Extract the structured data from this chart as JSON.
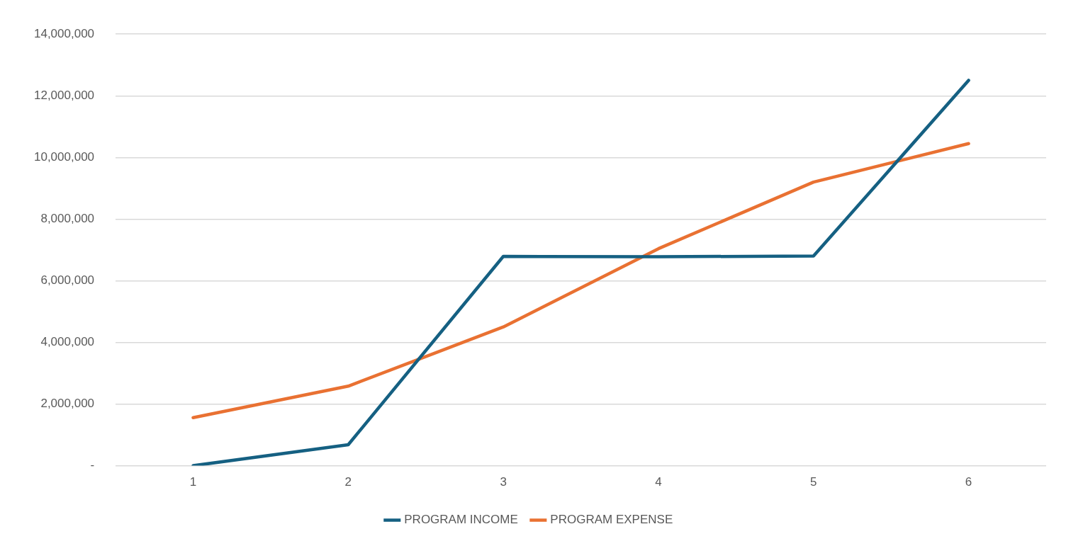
{
  "chart_data": {
    "type": "line",
    "categories": [
      "1",
      "2",
      "3",
      "4",
      "5",
      "6"
    ],
    "series": [
      {
        "name": "PROGRAM INCOME",
        "color": "#156082",
        "values": [
          0,
          680000,
          6790000,
          6780000,
          6800000,
          12500000
        ]
      },
      {
        "name": "PROGRAM EXPENSE",
        "color": "#e97132",
        "values": [
          1560000,
          2580000,
          4500000,
          7040000,
          9200000,
          10450000
        ]
      }
    ],
    "ylim": [
      0,
      14000000
    ],
    "yticks": [
      {
        "value": 0,
        "label": "-"
      },
      {
        "value": 2000000,
        "label": "2,000,000"
      },
      {
        "value": 4000000,
        "label": "4,000,000"
      },
      {
        "value": 6000000,
        "label": "6,000,000"
      },
      {
        "value": 8000000,
        "label": "8,000,000"
      },
      {
        "value": 10000000,
        "label": "10,000,000"
      },
      {
        "value": 12000000,
        "label": "12,000,000"
      },
      {
        "value": 14000000,
        "label": "14,000,000"
      }
    ],
    "grid": "y",
    "legend": "bottom",
    "marker": "none",
    "line_style": "solid"
  }
}
